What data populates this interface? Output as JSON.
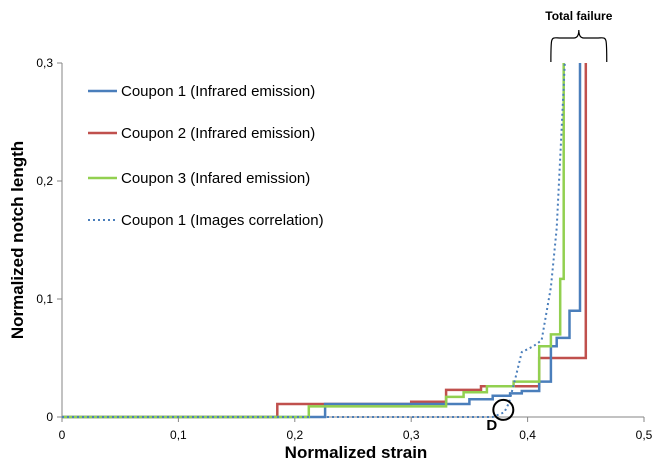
{
  "chart_data": {
    "type": "line",
    "xlabel": "Normalized strain",
    "ylabel": "Normalized  notch length",
    "xlim": [
      0,
      0.5
    ],
    "ylim": [
      0,
      0.3
    ],
    "xticks": [
      "0",
      "0,1",
      "0,2",
      "0,3",
      "0,4",
      "0,5"
    ],
    "yticks": [
      "0",
      "0,1",
      "0,2",
      "0,3"
    ],
    "grid": false,
    "legend_position": "top-left",
    "series": [
      {
        "name": "Coupon 1 (Infrared emission)",
        "color": "#4a7ebb",
        "style": "step",
        "x": [
          0,
          0.226,
          0.226,
          0.35,
          0.35,
          0.37,
          0.37,
          0.385,
          0.385,
          0.395,
          0.395,
          0.41,
          0.41,
          0.42,
          0.42,
          0.425,
          0.425,
          0.436,
          0.436,
          0.445,
          0.445
        ],
        "y": [
          0,
          0,
          0.011,
          0.011,
          0.015,
          0.015,
          0.018,
          0.018,
          0.02,
          0.02,
          0.022,
          0.022,
          0.03,
          0.03,
          0.06,
          0.06,
          0.067,
          0.067,
          0.09,
          0.09,
          0.3
        ]
      },
      {
        "name": "Coupon 2 (Infrared emission)",
        "color": "#c0504d",
        "style": "step",
        "x": [
          0,
          0.185,
          0.185,
          0.3,
          0.3,
          0.33,
          0.33,
          0.36,
          0.36,
          0.41,
          0.41,
          0.45,
          0.45
        ],
        "y": [
          0,
          0,
          0.011,
          0.011,
          0.013,
          0.013,
          0.023,
          0.023,
          0.026,
          0.026,
          0.05,
          0.05,
          0.3
        ]
      },
      {
        "name": "Coupon 3 (Infared emission)",
        "color": "#92d050",
        "style": "step",
        "x": [
          0,
          0.212,
          0.212,
          0.33,
          0.33,
          0.345,
          0.345,
          0.365,
          0.365,
          0.388,
          0.388,
          0.41,
          0.41,
          0.42,
          0.42,
          0.428,
          0.428,
          0.431,
          0.431
        ],
        "y": [
          0,
          0,
          0.009,
          0.009,
          0.017,
          0.017,
          0.021,
          0.021,
          0.026,
          0.026,
          0.03,
          0.03,
          0.06,
          0.06,
          0.07,
          0.07,
          0.117,
          0.117,
          0.3
        ]
      },
      {
        "name": "Coupon 1 (Images correlation)",
        "color": "#4a7ebb",
        "style": "dotted",
        "x": [
          0,
          0.37,
          0.38,
          0.384,
          0.39,
          0.395,
          0.405,
          0.412,
          0.42,
          0.425,
          0.429,
          0.432
        ],
        "y": [
          0,
          0,
          0.004,
          0.012,
          0.035,
          0.055,
          0.06,
          0.065,
          0.11,
          0.16,
          0.24,
          0.3
        ]
      }
    ],
    "annotations": [
      {
        "text": "D",
        "x": 0.38,
        "y": 0.006
      },
      {
        "text": "Total failure",
        "x_range": [
          0.42,
          0.468
        ]
      }
    ]
  }
}
